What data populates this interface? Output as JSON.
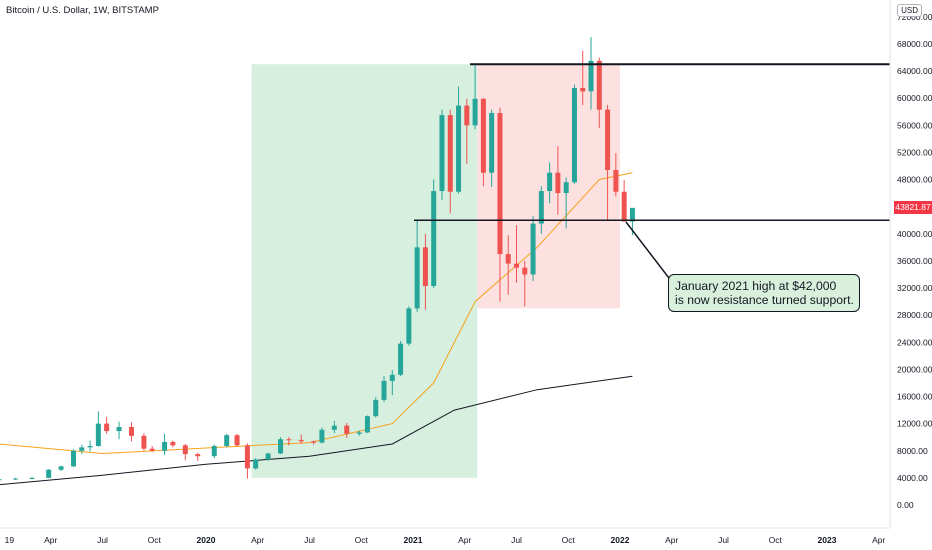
{
  "header": {
    "title": "Bitcoin / U.S. Dollar, 1W, BITSTAMP",
    "currency": "USD"
  },
  "last_price_label": "43821.87",
  "annotation": {
    "line1": "January 2021 high at $42,000",
    "line2": "is now resistance turned support."
  },
  "colors": {
    "up": "#26a69a",
    "down": "#ef5350",
    "ma_short": "#f7a21b",
    "ma_long": "#131722",
    "green_zone": "#d6efdf",
    "red_zone": "#fde1e1",
    "callout_bg": "#d9f1dc"
  },
  "chart_data": {
    "type": "candlestick",
    "symbol": "Bitcoin / U.S. Dollar",
    "interval": "1W",
    "exchange": "BITSTAMP",
    "x_tick_labels": [
      "19",
      "Apr",
      "Jul",
      "Oct",
      "2020",
      "Apr",
      "Jul",
      "Oct",
      "2021",
      "Apr",
      "Jul",
      "Oct",
      "2022",
      "Apr",
      "Jul",
      "Oct",
      "2023",
      "Apr"
    ],
    "x_tick_times": [
      2019.05,
      2019.25,
      2019.5,
      2019.75,
      2020.0,
      2020.25,
      2020.5,
      2020.75,
      2021.0,
      2021.25,
      2021.5,
      2021.75,
      2022.0,
      2022.25,
      2022.5,
      2022.75,
      2023.0,
      2023.25
    ],
    "y_tick_labels": [
      "0.00",
      "4000.00",
      "8000.00",
      "12000.00",
      "16000.00",
      "20000.00",
      "24000.00",
      "28000.00",
      "32000.00",
      "36000.00",
      "40000.00",
      "44000.00",
      "48000.00",
      "52000.00",
      "56000.00",
      "60000.00",
      "64000.00",
      "68000.00",
      "72000.00"
    ],
    "y_range": [
      0,
      72000
    ],
    "candles_weekly_approx": [
      [
        2019.0,
        3700,
        3900,
        3600,
        3800
      ],
      [
        2019.08,
        3800,
        4000,
        3700,
        3900
      ],
      [
        2019.16,
        3900,
        4100,
        3800,
        4000
      ],
      [
        2019.24,
        4000,
        5300,
        3950,
        5200
      ],
      [
        2019.3,
        5200,
        5800,
        5000,
        5700
      ],
      [
        2019.36,
        5700,
        8200,
        5600,
        8000
      ],
      [
        2019.4,
        8000,
        8900,
        7500,
        8500
      ],
      [
        2019.44,
        8500,
        9500,
        7900,
        8700
      ],
      [
        2019.48,
        8700,
        13800,
        8600,
        12000
      ],
      [
        2019.52,
        12000,
        13000,
        10500,
        10900
      ],
      [
        2019.58,
        10900,
        12300,
        9700,
        11500
      ],
      [
        2019.64,
        11500,
        12200,
        9400,
        10200
      ],
      [
        2019.7,
        10200,
        10600,
        8000,
        8300
      ],
      [
        2019.74,
        8300,
        8700,
        7800,
        8000
      ],
      [
        2019.8,
        8000,
        10500,
        7400,
        9300
      ],
      [
        2019.84,
        9300,
        9500,
        8500,
        8800
      ],
      [
        2019.9,
        8800,
        9000,
        6600,
        7500
      ],
      [
        2019.96,
        7500,
        7700,
        6500,
        7200
      ],
      [
        2020.04,
        7200,
        8900,
        6900,
        8700
      ],
      [
        2020.1,
        8700,
        10500,
        8500,
        10300
      ],
      [
        2020.15,
        10300,
        10500,
        8600,
        8800
      ],
      [
        2020.2,
        8800,
        9100,
        3900,
        5400
      ],
      [
        2020.24,
        5400,
        6900,
        5200,
        6700
      ],
      [
        2020.3,
        6700,
        7700,
        6500,
        7600
      ],
      [
        2020.36,
        7600,
        10000,
        7500,
        9700
      ],
      [
        2020.4,
        9700,
        10000,
        8800,
        9600
      ],
      [
        2020.46,
        9600,
        10400,
        9000,
        9400
      ],
      [
        2020.52,
        9400,
        9500,
        8900,
        9200
      ],
      [
        2020.56,
        9200,
        11400,
        9100,
        11100
      ],
      [
        2020.62,
        11100,
        12400,
        10600,
        11700
      ],
      [
        2020.68,
        11700,
        12100,
        9900,
        10500
      ],
      [
        2020.74,
        10500,
        11000,
        10200,
        10700
      ],
      [
        2020.78,
        10700,
        13200,
        10600,
        13100
      ],
      [
        2020.82,
        13100,
        15900,
        12900,
        15500
      ],
      [
        2020.86,
        15500,
        19000,
        15200,
        18300
      ],
      [
        2020.9,
        18300,
        19900,
        16200,
        19200
      ],
      [
        2020.94,
        19200,
        24200,
        19000,
        23800
      ],
      [
        2020.98,
        23800,
        29300,
        23500,
        29000
      ],
      [
        2021.02,
        29000,
        41900,
        28500,
        38000
      ],
      [
        2021.06,
        38000,
        40000,
        28800,
        32300
      ],
      [
        2021.1,
        32300,
        48000,
        32000,
        46300
      ],
      [
        2021.14,
        46300,
        58300,
        45000,
        57500
      ],
      [
        2021.18,
        57500,
        58300,
        43000,
        46200
      ],
      [
        2021.22,
        46200,
        61700,
        45900,
        58900
      ],
      [
        2021.26,
        58900,
        59900,
        50300,
        56000
      ],
      [
        2021.3,
        56000,
        64800,
        55400,
        59900
      ],
      [
        2021.34,
        59900,
        60000,
        47000,
        49000
      ],
      [
        2021.38,
        49000,
        58300,
        46900,
        57800
      ],
      [
        2021.42,
        57800,
        58600,
        30000,
        37000
      ],
      [
        2021.46,
        37000,
        39800,
        31000,
        35600
      ],
      [
        2021.5,
        35600,
        41300,
        32800,
        35000
      ],
      [
        2021.54,
        35000,
        36000,
        29300,
        34000
      ],
      [
        2021.58,
        34000,
        42600,
        33000,
        41500
      ],
      [
        2021.62,
        41500,
        47000,
        40000,
        46300
      ],
      [
        2021.66,
        46300,
        50500,
        44500,
        49000
      ],
      [
        2021.7,
        49000,
        52900,
        42800,
        46000
      ],
      [
        2021.74,
        46000,
        48300,
        40800,
        47600
      ],
      [
        2021.78,
        47600,
        62000,
        47300,
        61500
      ],
      [
        2021.82,
        61500,
        67000,
        59000,
        61000
      ],
      [
        2021.86,
        61000,
        69000,
        58300,
        65500
      ],
      [
        2021.9,
        65500,
        66000,
        55600,
        58300
      ],
      [
        2021.94,
        58300,
        59000,
        42000,
        49400
      ],
      [
        2021.98,
        49400,
        51900,
        45500,
        46200
      ],
      [
        2022.02,
        46200,
        47900,
        42000,
        41800
      ],
      [
        2022.06,
        41800,
        43500,
        39800,
        43821.87
      ]
    ],
    "moving_averages": [
      {
        "values_approx": [
          [
            2019.0,
            9000
          ],
          [
            2019.5,
            7600
          ],
          [
            2020.0,
            8400
          ],
          [
            2020.5,
            9200
          ],
          [
            2020.9,
            12000
          ],
          [
            2021.1,
            18000
          ],
          [
            2021.3,
            30000
          ],
          [
            2021.6,
            38000
          ],
          [
            2021.9,
            48000
          ],
          [
            2022.06,
            49000
          ]
        ]
      },
      {
        "values_approx": [
          [
            2019.0,
            3000
          ],
          [
            2019.5,
            4400
          ],
          [
            2020.0,
            6000
          ],
          [
            2020.5,
            7200
          ],
          [
            2020.9,
            9000
          ],
          [
            2021.2,
            14000
          ],
          [
            2021.6,
            17000
          ],
          [
            2022.06,
            19000
          ]
        ]
      }
    ],
    "horizontal_lines": [
      65000,
      42000
    ],
    "zones": [
      {
        "x": [
          2020.22,
          2021.31
        ],
        "y": [
          4000,
          65000
        ],
        "color": "green"
      },
      {
        "x": [
          2021.31,
          2022.0
        ],
        "y": [
          29000,
          65000
        ],
        "color": "red"
      }
    ]
  }
}
